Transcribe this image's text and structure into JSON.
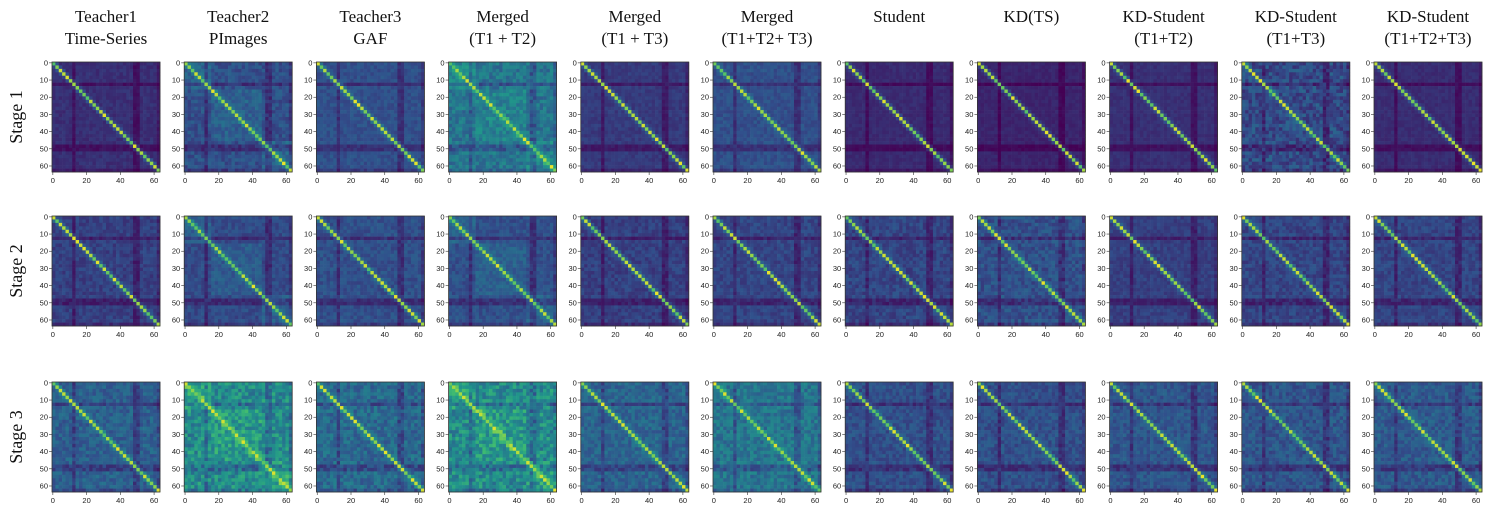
{
  "chart_data": {
    "type": "heatmap",
    "title": "",
    "columns": [
      {
        "line1": "Teacher1",
        "line2": "Time-Series"
      },
      {
        "line1": "Teacher2",
        "line2": "PImages"
      },
      {
        "line1": "Teacher3",
        "line2": "GAF"
      },
      {
        "line1": "Merged",
        "line2": "(T1 + T2)"
      },
      {
        "line1": "Merged",
        "line2": "(T1 + T3)"
      },
      {
        "line1": "Merged",
        "line2": "(T1+T2+ T3)"
      },
      {
        "line1": "Student",
        "line2": ""
      },
      {
        "line1": "KD(TS)",
        "line2": ""
      },
      {
        "line1": "KD-Student",
        "line2": "(T1+T2)"
      },
      {
        "line1": "KD-Student",
        "line2": "(T1+T3)"
      },
      {
        "line1": "KD-Student",
        "line2": "(T1+T2+T3)"
      }
    ],
    "rows": [
      "Stage 1",
      "Stage 2",
      "Stage 3"
    ],
    "matrix_size": 64,
    "x_ticks": [
      "0",
      "20",
      "40",
      "60"
    ],
    "y_ticks": [
      "0",
      "10",
      "20",
      "30",
      "40",
      "50",
      "60"
    ],
    "colormap": "viridis",
    "palette": {
      "low": "#2b1e5e",
      "mid_low": "#3b4a8c",
      "mid": "#2f7f8e",
      "mid_high": "#27ad81",
      "high": "#fde725"
    }
  }
}
